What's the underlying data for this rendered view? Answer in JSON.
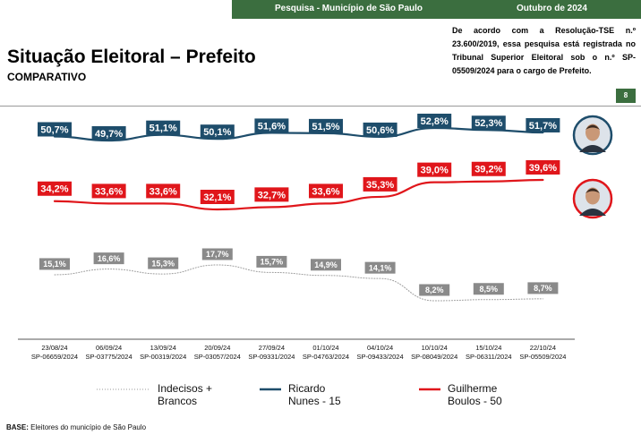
{
  "header": {
    "survey_label": "Pesquisa - Município de São Paulo",
    "date_label": "Outubro de 2024"
  },
  "title": "Situação Eleitoral – Prefeito",
  "subtitle": "COMPARATIVO",
  "disclaimer": "De acordo com a Resolução-TSE n.º 23.600/2019, essa pesquisa está registrada no Tribunal Superior Eleitoral sob o n.º SP-05509/2024 para o cargo de Prefeito.",
  "page_number": "8",
  "base_note": {
    "label": "BASE:",
    "text": "Eleitores do município de São Paulo"
  },
  "colors": {
    "header_green": "#3b6e3f",
    "ricardo": "#1e4d6b",
    "guilherme": "#e0161b",
    "indecisos": "#9a9a9a"
  },
  "legend": [
    {
      "line1": "Indecisos +",
      "line2": "Brancos",
      "series": "indecisos",
      "style": "dotted"
    },
    {
      "line1": "Ricardo",
      "line2": "Nunes - 15",
      "series": "ricardo",
      "style": "solid"
    },
    {
      "line1": "Guilherme",
      "line2": "Boulos - 50",
      "series": "guilherme",
      "style": "solid"
    }
  ],
  "chart_data": {
    "type": "line",
    "x": [
      {
        "date": "23/08/24",
        "reg": "SP-06659/2024"
      },
      {
        "date": "06/09/24",
        "reg": "SP-03775/2024"
      },
      {
        "date": "13/09/24",
        "reg": "SP-00319/2024"
      },
      {
        "date": "20/09/24",
        "reg": "SP-03057/2024"
      },
      {
        "date": "27/09/24",
        "reg": "SP-09331/2024"
      },
      {
        "date": "01/10/24",
        "reg": "SP-04763/2024"
      },
      {
        "date": "04/10/24",
        "reg": "SP-09433/2024"
      },
      {
        "date": "10/10/24",
        "reg": "SP-08049/2024"
      },
      {
        "date": "15/10/24",
        "reg": "SP-06311/2024"
      },
      {
        "date": "22/10/24",
        "reg": "SP-05509/2024"
      }
    ],
    "series": [
      {
        "key": "ricardo",
        "name": "Ricardo Nunes - 15",
        "values": [
          50.7,
          49.7,
          51.1,
          50.1,
          51.6,
          51.5,
          50.6,
          52.8,
          52.3,
          51.7
        ],
        "labels": [
          "50,7%",
          "49,7%",
          "51,1%",
          "50,1%",
          "51,6%",
          "51,5%",
          "50,6%",
          "52,8%",
          "52,3%",
          "51,7%"
        ]
      },
      {
        "key": "guilherme",
        "name": "Guilherme Boulos - 50",
        "values": [
          34.2,
          33.6,
          33.6,
          32.1,
          32.7,
          33.6,
          35.3,
          39.0,
          39.2,
          39.6
        ],
        "labels": [
          "34,2%",
          "33,6%",
          "33,6%",
          "32,1%",
          "32,7%",
          "33,6%",
          "35,3%",
          "39,0%",
          "39,2%",
          "39,6%"
        ]
      },
      {
        "key": "indecisos",
        "name": "Indecisos + Brancos",
        "values": [
          15.1,
          16.6,
          15.3,
          17.7,
          15.7,
          14.9,
          14.1,
          8.2,
          8.5,
          8.7
        ],
        "labels": [
          "15,1%",
          "16,6%",
          "15,3%",
          "17,7%",
          "15,7%",
          "14,9%",
          "14,1%",
          "8,2%",
          "8,5%",
          "8,7%"
        ]
      }
    ],
    "legend_position": "bottom",
    "grid": false
  }
}
